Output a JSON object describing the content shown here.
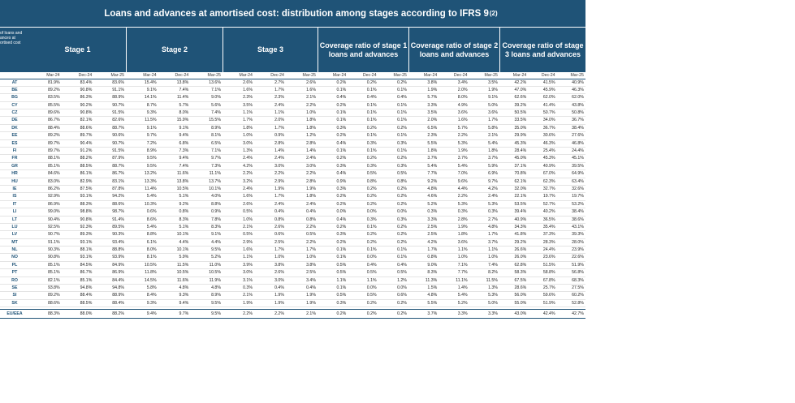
{
  "title": "Loans and advances at amortised cost: distribution among stages according to IFRS 9",
  "title_note": "(2)",
  "corner_label": "of loans and ances at ortised cost",
  "groups": [
    {
      "label": "Stage 1"
    },
    {
      "label": "Stage 2"
    },
    {
      "label": "Stage 3"
    },
    {
      "label": "Coverage ratio of stage 1 loans and advances"
    },
    {
      "label": "Coverage ratio of stage 2 loans and advances"
    },
    {
      "label": "Coverage ratio of stage 3 loans and advances"
    }
  ],
  "periods": [
    "Mar-24",
    "Dec-24",
    "Mar-25"
  ],
  "rows": [
    {
      "c": "AT",
      "v": [
        "81.9%",
        "83.4%",
        "83.6%",
        "15.4%",
        "13.8%",
        "13.6%",
        "2.6%",
        "2.7%",
        "2.6%",
        "0.2%",
        "0.2%",
        "0.2%",
        "3.8%",
        "3.4%",
        "3.5%",
        "42.2%",
        "41.5%",
        "40.9%"
      ]
    },
    {
      "c": "BE",
      "v": [
        "89.2%",
        "90.8%",
        "91.1%",
        "9.1%",
        "7.4%",
        "7.1%",
        "1.6%",
        "1.7%",
        "1.6%",
        "0.1%",
        "0.1%",
        "0.1%",
        "1.9%",
        "2.0%",
        "1.9%",
        "47.0%",
        "45.9%",
        "46.3%"
      ]
    },
    {
      "c": "BG",
      "v": [
        "83.5%",
        "86.3%",
        "88.9%",
        "14.1%",
        "11.4%",
        "9.0%",
        "2.3%",
        "2.3%",
        "2.1%",
        "0.4%",
        "0.4%",
        "0.4%",
        "5.7%",
        "8.0%",
        "9.1%",
        "62.6%",
        "62.0%",
        "62.0%"
      ]
    },
    {
      "c": "CY",
      "v": [
        "85.5%",
        "90.2%",
        "90.7%",
        "8.7%",
        "5.7%",
        "5.6%",
        "3.5%",
        "2.4%",
        "2.2%",
        "0.2%",
        "0.1%",
        "0.1%",
        "3.3%",
        "4.9%",
        "5.0%",
        "39.2%",
        "41.4%",
        "43.8%"
      ]
    },
    {
      "c": "CZ",
      "v": [
        "89.6%",
        "90.8%",
        "91.5%",
        "9.3%",
        "8.0%",
        "7.4%",
        "1.1%",
        "1.1%",
        "1.0%",
        "0.1%",
        "0.1%",
        "0.1%",
        "3.5%",
        "3.6%",
        "3.6%",
        "50.5%",
        "50.7%",
        "50.8%"
      ]
    },
    {
      "c": "DE",
      "v": [
        "86.7%",
        "82.1%",
        "82.6%",
        "11.5%",
        "15.9%",
        "15.5%",
        "1.7%",
        "2.0%",
        "1.8%",
        "0.1%",
        "0.1%",
        "0.1%",
        "2.0%",
        "1.6%",
        "1.7%",
        "33.5%",
        "34.0%",
        "36.7%"
      ]
    },
    {
      "c": "DK",
      "v": [
        "88.4%",
        "88.6%",
        "88.7%",
        "9.1%",
        "9.1%",
        "8.9%",
        "1.8%",
        "1.7%",
        "1.8%",
        "0.3%",
        "0.2%",
        "0.2%",
        "6.5%",
        "5.7%",
        "5.8%",
        "35.0%",
        "36.7%",
        "38.4%"
      ]
    },
    {
      "c": "EE",
      "v": [
        "89.2%",
        "89.7%",
        "90.6%",
        "9.7%",
        "9.4%",
        "8.1%",
        "1.0%",
        "0.9%",
        "1.2%",
        "0.2%",
        "0.1%",
        "0.1%",
        "2.3%",
        "2.2%",
        "2.1%",
        "29.9%",
        "30.6%",
        "27.6%"
      ]
    },
    {
      "c": "ES",
      "v": [
        "89.7%",
        "90.4%",
        "90.7%",
        "7.2%",
        "6.8%",
        "6.5%",
        "3.0%",
        "2.8%",
        "2.8%",
        "0.4%",
        "0.3%",
        "0.3%",
        "5.5%",
        "5.3%",
        "5.4%",
        "45.3%",
        "46.3%",
        "46.8%"
      ]
    },
    {
      "c": "FI",
      "v": [
        "89.7%",
        "91.2%",
        "91.5%",
        "8.9%",
        "7.3%",
        "7.1%",
        "1.3%",
        "1.4%",
        "1.4%",
        "0.1%",
        "0.1%",
        "0.1%",
        "1.8%",
        "1.9%",
        "1.8%",
        "28.4%",
        "25.4%",
        "24.4%"
      ]
    },
    {
      "c": "FR",
      "v": [
        "88.1%",
        "88.2%",
        "87.9%",
        "9.5%",
        "9.4%",
        "9.7%",
        "2.4%",
        "2.4%",
        "2.4%",
        "0.2%",
        "0.2%",
        "0.2%",
        "3.7%",
        "3.7%",
        "3.7%",
        "45.0%",
        "45.3%",
        "45.1%"
      ]
    },
    {
      "c": "GR",
      "v": [
        "85.1%",
        "88.5%",
        "88.7%",
        "9.5%",
        "7.4%",
        "7.3%",
        "4.2%",
        "3.0%",
        "3.0%",
        "0.3%",
        "0.3%",
        "0.3%",
        "5.4%",
        "5.4%",
        "5.9%",
        "37.1%",
        "40.9%",
        "39.5%"
      ]
    },
    {
      "c": "HR",
      "v": [
        "84.6%",
        "86.1%",
        "86.7%",
        "13.2%",
        "11.6%",
        "11.1%",
        "2.2%",
        "2.2%",
        "2.2%",
        "0.4%",
        "0.5%",
        "0.5%",
        "7.7%",
        "7.0%",
        "6.9%",
        "70.8%",
        "67.0%",
        "64.9%"
      ]
    },
    {
      "c": "HU",
      "v": [
        "83.0%",
        "82.9%",
        "83.1%",
        "13.3%",
        "13.8%",
        "13.7%",
        "3.2%",
        "2.9%",
        "2.8%",
        "0.9%",
        "0.8%",
        "0.8%",
        "9.2%",
        "9.6%",
        "9.7%",
        "62.1%",
        "62.3%",
        "63.4%"
      ]
    },
    {
      "c": "IE",
      "v": [
        "86.2%",
        "87.5%",
        "87.8%",
        "11.4%",
        "10.5%",
        "10.1%",
        "2.4%",
        "1.9%",
        "1.9%",
        "0.3%",
        "0.2%",
        "0.2%",
        "4.8%",
        "4.4%",
        "4.2%",
        "32.0%",
        "32.7%",
        "32.6%"
      ]
    },
    {
      "c": "IS",
      "v": [
        "92.9%",
        "93.1%",
        "94.2%",
        "5.4%",
        "5.1%",
        "4.0%",
        "1.6%",
        "1.7%",
        "1.8%",
        "0.2%",
        "0.2%",
        "0.2%",
        "4.6%",
        "2.2%",
        "2.4%",
        "22.1%",
        "19.7%",
        "19.7%"
      ]
    },
    {
      "c": "IT",
      "v": [
        "86.9%",
        "88.3%",
        "88.6%",
        "10.3%",
        "9.2%",
        "8.8%",
        "2.6%",
        "2.4%",
        "2.4%",
        "0.2%",
        "0.2%",
        "0.2%",
        "5.2%",
        "5.3%",
        "5.3%",
        "53.5%",
        "52.7%",
        "53.2%"
      ]
    },
    {
      "c": "LI",
      "v": [
        "99.0%",
        "98.8%",
        "98.7%",
        "0.6%",
        "0.8%",
        "0.9%",
        "0.5%",
        "0.4%",
        "0.4%",
        "0.0%",
        "0.0%",
        "0.0%",
        "0.3%",
        "0.3%",
        "0.3%",
        "39.4%",
        "40.2%",
        "38.4%"
      ]
    },
    {
      "c": "LT",
      "v": [
        "90.4%",
        "90.8%",
        "91.4%",
        "8.6%",
        "8.3%",
        "7.8%",
        "1.0%",
        "0.8%",
        "0.8%",
        "0.4%",
        "0.3%",
        "0.3%",
        "3.3%",
        "2.8%",
        "2.7%",
        "40.9%",
        "36.5%",
        "38.6%"
      ]
    },
    {
      "c": "LU",
      "v": [
        "92.5%",
        "92.3%",
        "89.5%",
        "5.4%",
        "5.1%",
        "8.3%",
        "2.1%",
        "2.6%",
        "2.2%",
        "0.2%",
        "0.1%",
        "0.2%",
        "2.5%",
        "1.9%",
        "4.8%",
        "34.3%",
        "35.4%",
        "43.1%"
      ]
    },
    {
      "c": "LV",
      "v": [
        "90.7%",
        "89.3%",
        "90.3%",
        "8.8%",
        "10.1%",
        "9.1%",
        "0.5%",
        "0.6%",
        "0.5%",
        "0.3%",
        "0.2%",
        "0.2%",
        "2.5%",
        "1.8%",
        "1.7%",
        "41.8%",
        "37.3%",
        "39.3%"
      ]
    },
    {
      "c": "MT",
      "v": [
        "91.1%",
        "93.1%",
        "93.4%",
        "6.1%",
        "4.4%",
        "4.4%",
        "2.9%",
        "2.5%",
        "2.2%",
        "0.2%",
        "0.2%",
        "0.2%",
        "4.2%",
        "3.6%",
        "3.7%",
        "29.2%",
        "28.3%",
        "28.0%"
      ]
    },
    {
      "c": "NL",
      "v": [
        "90.3%",
        "88.1%",
        "88.8%",
        "8.0%",
        "10.1%",
        "9.5%",
        "1.6%",
        "1.7%",
        "1.7%",
        "0.1%",
        "0.1%",
        "0.1%",
        "1.7%",
        "1.1%",
        "1.1%",
        "26.6%",
        "24.4%",
        "23.9%"
      ]
    },
    {
      "c": "NO",
      "v": [
        "90.8%",
        "93.1%",
        "93.9%",
        "8.1%",
        "5.9%",
        "5.2%",
        "1.1%",
        "1.0%",
        "1.0%",
        "0.1%",
        "0.0%",
        "0.1%",
        "0.8%",
        "1.0%",
        "1.0%",
        "26.0%",
        "23.6%",
        "22.6%"
      ]
    },
    {
      "c": "PL",
      "v": [
        "85.1%",
        "84.5%",
        "84.9%",
        "10.5%",
        "11.5%",
        "11.0%",
        "3.9%",
        "3.8%",
        "3.8%",
        "0.5%",
        "0.4%",
        "0.4%",
        "9.0%",
        "7.1%",
        "7.4%",
        "62.8%",
        "51.5%",
        "51.9%"
      ]
    },
    {
      "c": "PT",
      "v": [
        "85.1%",
        "86.7%",
        "86.9%",
        "11.8%",
        "10.5%",
        "10.5%",
        "3.0%",
        "2.6%",
        "2.5%",
        "0.5%",
        "0.5%",
        "0.5%",
        "8.3%",
        "7.7%",
        "8.2%",
        "58.3%",
        "58.8%",
        "56.8%"
      ]
    },
    {
      "c": "RO",
      "v": [
        "82.1%",
        "85.1%",
        "84.4%",
        "14.5%",
        "11.6%",
        "11.9%",
        "3.1%",
        "3.0%",
        "3.4%",
        "1.1%",
        "1.1%",
        "1.2%",
        "11.3%",
        "11.1%",
        "11.5%",
        "67.5%",
        "67.8%",
        "68.3%"
      ]
    },
    {
      "c": "SE",
      "v": [
        "93.8%",
        "94.8%",
        "94.8%",
        "5.8%",
        "4.8%",
        "4.8%",
        "0.3%",
        "0.4%",
        "0.4%",
        "0.1%",
        "0.0%",
        "0.0%",
        "1.5%",
        "1.4%",
        "1.3%",
        "28.6%",
        "25.7%",
        "27.5%"
      ]
    },
    {
      "c": "SI",
      "v": [
        "89.2%",
        "88.4%",
        "88.9%",
        "8.4%",
        "9.3%",
        "8.9%",
        "2.1%",
        "1.9%",
        "1.9%",
        "0.5%",
        "0.5%",
        "0.6%",
        "4.8%",
        "5.4%",
        "5.3%",
        "56.0%",
        "59.6%",
        "60.2%"
      ]
    },
    {
      "c": "SK",
      "v": [
        "88.6%",
        "88.5%",
        "88.4%",
        "9.3%",
        "9.4%",
        "9.5%",
        "1.9%",
        "1.9%",
        "1.9%",
        "0.3%",
        "0.2%",
        "0.2%",
        "5.5%",
        "5.2%",
        "5.0%",
        "55.0%",
        "51.9%",
        "52.8%"
      ]
    }
  ],
  "total": {
    "c": "EU/EEA",
    "v": [
      "88.3%",
      "88.0%",
      "88.2%",
      "9.4%",
      "9.7%",
      "9.5%",
      "2.2%",
      "2.2%",
      "2.1%",
      "0.2%",
      "0.2%",
      "0.2%",
      "3.7%",
      "3.3%",
      "3.3%",
      "43.0%",
      "42.4%",
      "42.7%"
    ]
  }
}
